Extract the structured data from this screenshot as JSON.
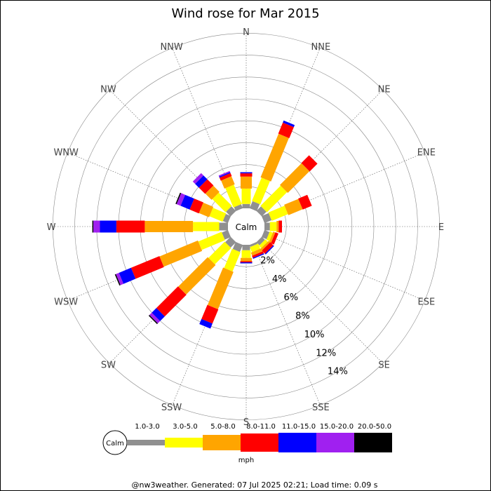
{
  "chart_data": {
    "type": "wind-rose",
    "title": "Wind rose for Mar 2015",
    "directions": [
      "N",
      "NNE",
      "NE",
      "ENE",
      "E",
      "ESE",
      "SE",
      "SSE",
      "S",
      "SSW",
      "SW",
      "WSW",
      "W",
      "WNW",
      "NW",
      "NNW"
    ],
    "radial_ticks": [
      "2%",
      "4%",
      "6%",
      "8%",
      "10%",
      "12%",
      "14%"
    ],
    "radial_max": 14,
    "center_label": "Calm",
    "units": "mph",
    "speed_bins": [
      {
        "label": "1.0-3.0",
        "color": "#909090"
      },
      {
        "label": "3.0-5.0",
        "color": "#ffff00"
      },
      {
        "label": "5.0-8.0",
        "color": "#ffa500"
      },
      {
        "label": "8.0-11.0",
        "color": "#ff0000"
      },
      {
        "label": "11.0-15.0",
        "color": "#0000ff"
      },
      {
        "label": "15.0-20.0",
        "color": "#a020f0"
      },
      {
        "label": "20.0-50.0",
        "color": "#000000"
      }
    ],
    "series": [
      {
        "name": "1.0-3.0",
        "values": [
          0.4,
          0.7,
          0.6,
          0.7,
          0.5,
          0.5,
          0.4,
          0.2,
          0.5,
          0.7,
          0.7,
          0.6,
          0.8,
          0.5,
          0.6,
          0.4
        ]
      },
      {
        "name": "3.0-5.0",
        "values": [
          1.4,
          2.3,
          2.6,
          1.6,
          0.6,
          0.3,
          0.3,
          0.5,
          0.7,
          1.9,
          2.1,
          2.3,
          2.4,
          1.3,
          1.7,
          1.9
        ]
      },
      {
        "name": "5.0-8.0",
        "values": [
          1.1,
          4.3,
          2.8,
          1.4,
          0.2,
          0.2,
          0.2,
          0.3,
          0.3,
          3.7,
          3.8,
          3.8,
          4.4,
          1.0,
          0.8,
          0.8
        ]
      },
      {
        "name": "8.0-11.0",
        "values": [
          0.3,
          1.1,
          1.0,
          0.9,
          0.3,
          0.3,
          0.4,
          0.2,
          0.1,
          1.4,
          2.8,
          2.8,
          2.6,
          0.9,
          0.8,
          0.3
        ]
      },
      {
        "name": "11.0-15.0",
        "values": [
          0.1,
          0.2,
          0.0,
          0.0,
          0.0,
          0.0,
          0.1,
          0.1,
          0.1,
          0.5,
          0.6,
          1.2,
          1.5,
          0.9,
          0.5,
          0.1
        ]
      },
      {
        "name": "15.0-20.0",
        "values": [
          0.0,
          0.0,
          0.0,
          0.0,
          0.0,
          0.0,
          0.0,
          0.0,
          0.0,
          0.0,
          0.3,
          0.3,
          0.6,
          0.4,
          0.3,
          0.1
        ]
      },
      {
        "name": "20.0-50.0",
        "values": [
          0.0,
          0.0,
          0.0,
          0.0,
          0.0,
          0.0,
          0.0,
          0.0,
          0.0,
          0.0,
          0.1,
          0.1,
          0.1,
          0.1,
          0.0,
          0.0
        ]
      }
    ]
  },
  "footer": "@nw3weather. Generated: 07 Jul 2025 02:21; Load time: 0.09 s"
}
